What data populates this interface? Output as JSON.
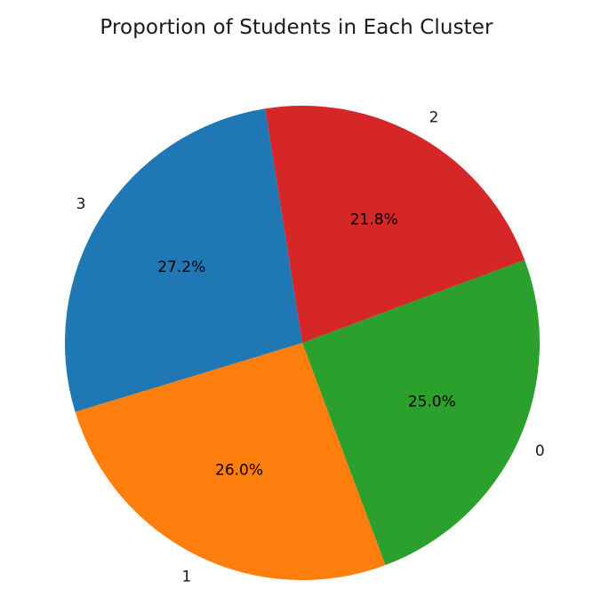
{
  "chart_data": {
    "type": "pie",
    "title": "Proportion of Students in Each Cluster",
    "categories": [
      "0",
      "1",
      "3",
      "2"
    ],
    "values": [
      25.0,
      26.0,
      27.2,
      21.8
    ],
    "percent_labels": [
      "25.0%",
      "26.0%",
      "27.2%",
      "21.8%"
    ],
    "colors": [
      "#2ca02c",
      "#ff7f0e",
      "#1f77b4",
      "#d62728"
    ],
    "direction": "clockwise",
    "legend": "none"
  }
}
